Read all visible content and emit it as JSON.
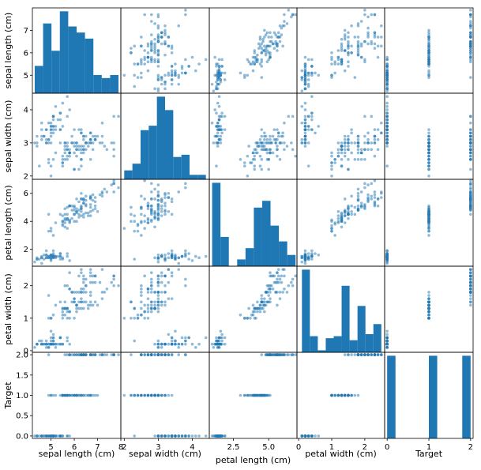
{
  "chart_data": {
    "type": "scatter",
    "kind": "scatter_matrix",
    "variables": [
      "sepal length (cm)",
      "sepal width (cm)",
      "petal length (cm)",
      "petal width (cm)",
      "Target"
    ],
    "color": "#1f77b4",
    "point_alpha": 0.5,
    "diagonal": "hist",
    "hist_bins": 10,
    "grid": false,
    "panels_y_ticks": {
      "sepal length (cm)": [
        "5",
        "6",
        "7"
      ],
      "sepal width (cm)": [
        "2",
        "3",
        "4"
      ],
      "petal length (cm)": [
        "2",
        "4",
        "6"
      ],
      "petal width (cm)": [
        "0",
        "1",
        "2"
      ],
      "Target": [
        "0.0",
        "0.5",
        "1.0",
        "1.5",
        "2.0"
      ]
    },
    "panels_x_ticks": {
      "sepal length (cm)": [
        "5",
        "6",
        "7",
        "8"
      ],
      "sepal width (cm)": [
        "2",
        "3",
        "4"
      ],
      "petal length (cm)": [
        "2.5",
        "5.0"
      ],
      "petal width (cm)": [
        "0",
        "1",
        "2"
      ],
      "Target": [
        "0",
        "1",
        "2"
      ]
    },
    "ranges": {
      "sepal length (cm)": [
        4.2,
        8.0
      ],
      "sepal width (cm)": [
        1.9,
        4.5
      ],
      "petal length (cm)": [
        0.8,
        7.0
      ],
      "petal width (cm)": [
        -0.05,
        2.6
      ],
      "Target": [
        -0.06,
        2.06
      ]
    },
    "data": [
      [
        5.1,
        3.5,
        1.4,
        0.2,
        0
      ],
      [
        4.9,
        3.0,
        1.4,
        0.2,
        0
      ],
      [
        4.7,
        3.2,
        1.3,
        0.2,
        0
      ],
      [
        4.6,
        3.1,
        1.5,
        0.2,
        0
      ],
      [
        5.0,
        3.6,
        1.4,
        0.2,
        0
      ],
      [
        5.4,
        3.9,
        1.7,
        0.4,
        0
      ],
      [
        4.6,
        3.4,
        1.4,
        0.3,
        0
      ],
      [
        5.0,
        3.4,
        1.5,
        0.2,
        0
      ],
      [
        4.4,
        2.9,
        1.4,
        0.2,
        0
      ],
      [
        4.9,
        3.1,
        1.5,
        0.1,
        0
      ],
      [
        5.4,
        3.7,
        1.5,
        0.2,
        0
      ],
      [
        4.8,
        3.4,
        1.6,
        0.2,
        0
      ],
      [
        4.8,
        3.0,
        1.4,
        0.1,
        0
      ],
      [
        4.3,
        3.0,
        1.1,
        0.1,
        0
      ],
      [
        5.8,
        4.0,
        1.2,
        0.2,
        0
      ],
      [
        5.7,
        4.4,
        1.5,
        0.4,
        0
      ],
      [
        5.4,
        3.9,
        1.3,
        0.4,
        0
      ],
      [
        5.1,
        3.5,
        1.4,
        0.3,
        0
      ],
      [
        5.7,
        3.8,
        1.7,
        0.3,
        0
      ],
      [
        5.1,
        3.8,
        1.5,
        0.3,
        0
      ],
      [
        5.4,
        3.4,
        1.7,
        0.2,
        0
      ],
      [
        5.1,
        3.7,
        1.5,
        0.4,
        0
      ],
      [
        4.6,
        3.6,
        1.0,
        0.2,
        0
      ],
      [
        5.1,
        3.3,
        1.7,
        0.5,
        0
      ],
      [
        4.8,
        3.4,
        1.9,
        0.2,
        0
      ],
      [
        5.0,
        3.0,
        1.6,
        0.2,
        0
      ],
      [
        5.0,
        3.4,
        1.6,
        0.4,
        0
      ],
      [
        5.2,
        3.5,
        1.5,
        0.2,
        0
      ],
      [
        5.2,
        3.4,
        1.4,
        0.2,
        0
      ],
      [
        4.7,
        3.2,
        1.6,
        0.2,
        0
      ],
      [
        4.8,
        3.1,
        1.6,
        0.2,
        0
      ],
      [
        5.4,
        3.4,
        1.5,
        0.4,
        0
      ],
      [
        5.2,
        4.1,
        1.5,
        0.1,
        0
      ],
      [
        5.5,
        4.2,
        1.4,
        0.2,
        0
      ],
      [
        4.9,
        3.1,
        1.5,
        0.2,
        0
      ],
      [
        5.0,
        3.2,
        1.2,
        0.2,
        0
      ],
      [
        5.5,
        3.5,
        1.3,
        0.2,
        0
      ],
      [
        4.9,
        3.6,
        1.4,
        0.1,
        0
      ],
      [
        4.4,
        3.0,
        1.3,
        0.2,
        0
      ],
      [
        5.1,
        3.4,
        1.5,
        0.2,
        0
      ],
      [
        5.0,
        3.5,
        1.3,
        0.3,
        0
      ],
      [
        4.5,
        2.3,
        1.3,
        0.3,
        0
      ],
      [
        4.4,
        3.2,
        1.3,
        0.2,
        0
      ],
      [
        5.0,
        3.5,
        1.6,
        0.6,
        0
      ],
      [
        5.1,
        3.8,
        1.9,
        0.4,
        0
      ],
      [
        4.8,
        3.0,
        1.4,
        0.3,
        0
      ],
      [
        5.1,
        3.8,
        1.6,
        0.2,
        0
      ],
      [
        4.6,
        3.2,
        1.4,
        0.2,
        0
      ],
      [
        5.3,
        3.7,
        1.5,
        0.2,
        0
      ],
      [
        5.0,
        3.3,
        1.4,
        0.2,
        0
      ],
      [
        7.0,
        3.2,
        4.7,
        1.4,
        1
      ],
      [
        6.4,
        3.2,
        4.5,
        1.5,
        1
      ],
      [
        6.9,
        3.1,
        4.9,
        1.5,
        1
      ],
      [
        5.5,
        2.3,
        4.0,
        1.3,
        1
      ],
      [
        6.5,
        2.8,
        4.6,
        1.5,
        1
      ],
      [
        5.7,
        2.8,
        4.5,
        1.3,
        1
      ],
      [
        6.3,
        3.3,
        4.7,
        1.6,
        1
      ],
      [
        4.9,
        2.4,
        3.3,
        1.0,
        1
      ],
      [
        6.6,
        2.9,
        4.6,
        1.3,
        1
      ],
      [
        5.2,
        2.7,
        3.9,
        1.4,
        1
      ],
      [
        5.0,
        2.0,
        3.5,
        1.0,
        1
      ],
      [
        5.9,
        3.0,
        4.2,
        1.5,
        1
      ],
      [
        6.0,
        2.2,
        4.0,
        1.0,
        1
      ],
      [
        6.1,
        2.9,
        4.7,
        1.4,
        1
      ],
      [
        5.6,
        2.9,
        3.6,
        1.3,
        1
      ],
      [
        6.7,
        3.1,
        4.4,
        1.4,
        1
      ],
      [
        5.6,
        3.0,
        4.5,
        1.5,
        1
      ],
      [
        5.8,
        2.7,
        4.1,
        1.0,
        1
      ],
      [
        6.2,
        2.2,
        4.5,
        1.5,
        1
      ],
      [
        5.6,
        2.5,
        3.9,
        1.1,
        1
      ],
      [
        5.9,
        3.2,
        4.8,
        1.8,
        1
      ],
      [
        6.1,
        2.8,
        4.0,
        1.3,
        1
      ],
      [
        6.3,
        2.5,
        4.9,
        1.5,
        1
      ],
      [
        6.1,
        2.8,
        4.7,
        1.2,
        1
      ],
      [
        6.4,
        2.9,
        4.3,
        1.3,
        1
      ],
      [
        6.6,
        3.0,
        4.4,
        1.4,
        1
      ],
      [
        6.8,
        2.8,
        4.8,
        1.4,
        1
      ],
      [
        6.7,
        3.0,
        5.0,
        1.7,
        1
      ],
      [
        6.0,
        2.9,
        4.5,
        1.5,
        1
      ],
      [
        5.7,
        2.6,
        3.5,
        1.0,
        1
      ],
      [
        5.5,
        2.4,
        3.8,
        1.1,
        1
      ],
      [
        5.5,
        2.4,
        3.7,
        1.0,
        1
      ],
      [
        5.8,
        2.7,
        3.9,
        1.2,
        1
      ],
      [
        6.0,
        2.7,
        5.1,
        1.6,
        1
      ],
      [
        5.4,
        3.0,
        4.5,
        1.5,
        1
      ],
      [
        6.0,
        3.4,
        4.5,
        1.6,
        1
      ],
      [
        6.7,
        3.1,
        4.7,
        1.5,
        1
      ],
      [
        6.3,
        2.3,
        4.4,
        1.3,
        1
      ],
      [
        5.6,
        3.0,
        4.1,
        1.3,
        1
      ],
      [
        5.5,
        2.5,
        4.0,
        1.3,
        1
      ],
      [
        5.5,
        2.6,
        4.4,
        1.2,
        1
      ],
      [
        6.1,
        3.0,
        4.6,
        1.4,
        1
      ],
      [
        5.8,
        2.6,
        4.0,
        1.2,
        1
      ],
      [
        5.0,
        2.3,
        3.3,
        1.0,
        1
      ],
      [
        5.6,
        2.7,
        4.2,
        1.3,
        1
      ],
      [
        5.7,
        3.0,
        4.2,
        1.2,
        1
      ],
      [
        5.7,
        2.9,
        4.2,
        1.3,
        1
      ],
      [
        6.2,
        2.9,
        4.3,
        1.3,
        1
      ],
      [
        5.1,
        2.5,
        3.0,
        1.1,
        1
      ],
      [
        5.7,
        2.8,
        4.1,
        1.3,
        1
      ],
      [
        6.3,
        3.3,
        6.0,
        2.5,
        2
      ],
      [
        5.8,
        2.7,
        5.1,
        1.9,
        2
      ],
      [
        7.1,
        3.0,
        5.9,
        2.1,
        2
      ],
      [
        6.3,
        2.9,
        5.6,
        1.8,
        2
      ],
      [
        6.5,
        3.0,
        5.8,
        2.2,
        2
      ],
      [
        7.6,
        3.0,
        6.6,
        2.1,
        2
      ],
      [
        4.9,
        2.5,
        4.5,
        1.7,
        2
      ],
      [
        7.3,
        2.9,
        6.3,
        1.8,
        2
      ],
      [
        6.7,
        2.5,
        5.8,
        1.8,
        2
      ],
      [
        7.2,
        3.6,
        6.1,
        2.5,
        2
      ],
      [
        6.5,
        3.2,
        5.1,
        2.0,
        2
      ],
      [
        6.4,
        2.7,
        5.3,
        1.9,
        2
      ],
      [
        6.8,
        3.0,
        5.5,
        2.1,
        2
      ],
      [
        5.7,
        2.5,
        5.0,
        2.0,
        2
      ],
      [
        5.8,
        2.8,
        5.1,
        2.4,
        2
      ],
      [
        6.4,
        3.2,
        5.3,
        2.3,
        2
      ],
      [
        6.5,
        3.0,
        5.5,
        1.8,
        2
      ],
      [
        7.7,
        3.8,
        6.7,
        2.2,
        2
      ],
      [
        7.7,
        2.6,
        6.9,
        2.3,
        2
      ],
      [
        6.0,
        2.2,
        5.0,
        1.5,
        2
      ],
      [
        6.9,
        3.2,
        5.7,
        2.3,
        2
      ],
      [
        5.6,
        2.8,
        4.9,
        2.0,
        2
      ],
      [
        7.7,
        2.8,
        6.7,
        2.0,
        2
      ],
      [
        6.3,
        2.7,
        4.9,
        1.8,
        2
      ],
      [
        6.7,
        3.3,
        5.7,
        2.1,
        2
      ],
      [
        7.2,
        3.2,
        6.0,
        1.8,
        2
      ],
      [
        6.2,
        2.8,
        4.8,
        1.8,
        2
      ],
      [
        6.1,
        3.0,
        4.9,
        1.8,
        2
      ],
      [
        6.4,
        2.8,
        5.6,
        2.1,
        2
      ],
      [
        7.2,
        3.0,
        5.8,
        1.6,
        2
      ],
      [
        7.4,
        2.8,
        6.1,
        1.9,
        2
      ],
      [
        7.9,
        3.8,
        6.4,
        2.0,
        2
      ],
      [
        6.4,
        2.8,
        5.6,
        2.2,
        2
      ],
      [
        6.3,
        2.8,
        5.1,
        1.5,
        2
      ],
      [
        6.1,
        2.6,
        5.6,
        1.4,
        2
      ],
      [
        7.7,
        3.0,
        6.1,
        2.3,
        2
      ],
      [
        6.3,
        3.4,
        5.6,
        2.4,
        2
      ],
      [
        6.4,
        3.1,
        5.5,
        1.8,
        2
      ],
      [
        6.0,
        3.0,
        4.8,
        1.8,
        2
      ],
      [
        6.9,
        3.1,
        5.4,
        2.1,
        2
      ],
      [
        6.7,
        3.1,
        5.6,
        2.4,
        2
      ],
      [
        6.9,
        3.1,
        5.1,
        2.3,
        2
      ],
      [
        5.8,
        2.7,
        5.1,
        1.9,
        2
      ],
      [
        6.8,
        3.2,
        5.9,
        2.3,
        2
      ],
      [
        6.7,
        3.3,
        5.7,
        2.5,
        2
      ],
      [
        6.7,
        3.0,
        5.2,
        2.3,
        2
      ],
      [
        6.3,
        2.5,
        5.0,
        1.9,
        2
      ],
      [
        6.5,
        3.0,
        5.2,
        2.0,
        2
      ],
      [
        6.2,
        3.4,
        5.4,
        2.3,
        2
      ],
      [
        5.9,
        3.0,
        5.1,
        1.8,
        2
      ]
    ]
  }
}
